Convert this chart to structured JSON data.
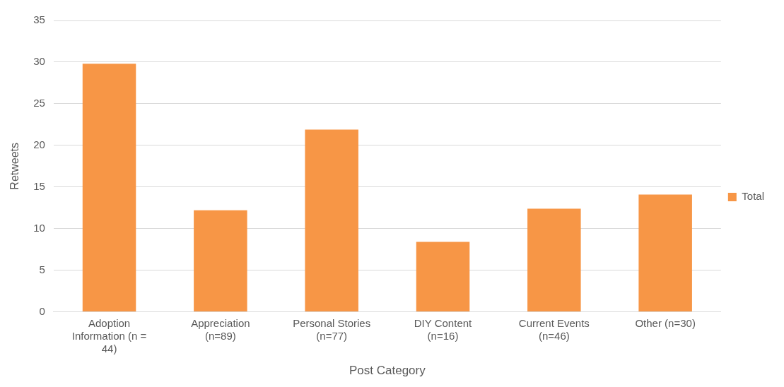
{
  "chart_data": {
    "type": "bar",
    "xlabel": "Post Category",
    "ylabel": "Retweets",
    "categories": [
      "Adoption Information (n = 44)",
      "Appreciation (n=89)",
      "Personal Stories (n=77)",
      "DIY Content (n=16)",
      "Current Events (n=46)",
      "Other (n=30)"
    ],
    "series": [
      {
        "name": "Total",
        "color": "#f79646",
        "values": [
          29.8,
          12.2,
          21.9,
          8.4,
          12.4,
          14.1
        ]
      }
    ],
    "ylim": [
      0,
      35
    ],
    "yticks": [
      0,
      5,
      10,
      15,
      20,
      25,
      30,
      35
    ],
    "grid": "y",
    "legend": "right"
  }
}
